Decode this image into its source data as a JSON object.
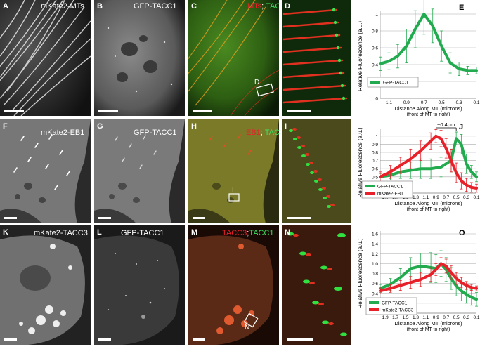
{
  "panels": {
    "A": {
      "letter": "A",
      "title": "mKate2-MTs"
    },
    "B": {
      "letter": "B",
      "title": "GFP-TACC1"
    },
    "C": {
      "letter": "C",
      "title_red": "MTs",
      "sep": "; ",
      "title_green": "TACC1",
      "box": "D"
    },
    "D": {
      "letter": "D"
    },
    "F": {
      "letter": "F",
      "title": "mKate2-EB1"
    },
    "G": {
      "letter": "G",
      "title": "GFP-TACC1"
    },
    "H": {
      "letter": "H",
      "title_red": "EB1",
      "sep": "; ",
      "title_green": "TACC1",
      "box": "I"
    },
    "I": {
      "letter": "I"
    },
    "K": {
      "letter": "K",
      "title": "mKate2-TACC3"
    },
    "L": {
      "letter": "L",
      "title": "GFP-TACC1"
    },
    "M": {
      "letter": "M",
      "title_red": "TACC3",
      "sep": ";",
      "title_green": "TACC1",
      "box": "N"
    },
    "N": {
      "letter": "N"
    }
  },
  "chart_data": [
    {
      "letter": "E",
      "type": "line",
      "ylabel": "Relative Fluorescence (a.u.)",
      "xlabel": "Distance Along MT (microns)",
      "xlabel2": "(front of MT to right)",
      "x_ticks": [
        "1.1",
        "0.9",
        "0.7",
        "0.5",
        "0.3",
        "0.1"
      ],
      "y_ticks": [
        "0",
        "0.2",
        "0.4",
        "0.6",
        "0.8",
        "1"
      ],
      "ylim": [
        0,
        1
      ],
      "xlim": [
        1.2,
        0.1
      ],
      "series": [
        {
          "name": "GFP-TACC1",
          "color": "#22aa4e",
          "x": [
            1.2,
            1.1,
            1.0,
            0.9,
            0.8,
            0.7,
            0.6,
            0.5,
            0.4,
            0.3,
            0.2,
            0.1
          ],
          "values": [
            0.41,
            0.44,
            0.5,
            0.62,
            0.82,
            1.0,
            0.86,
            0.62,
            0.42,
            0.35,
            0.33,
            0.33
          ],
          "err": [
            0.08,
            0.1,
            0.14,
            0.2,
            0.22,
            0.24,
            0.2,
            0.18,
            0.12,
            0.08,
            0.05,
            0.04
          ]
        }
      ]
    },
    {
      "letter": "J",
      "type": "line",
      "ylabel": "Relative Fluorescence (a.u.)",
      "xlabel": "Distance Along MT (microns)",
      "xlabel2": "(front of MT to right)",
      "annotation": "~0.4μm",
      "x_ticks": [
        "1.9",
        "1.7",
        "1.5",
        "1.3",
        "1.1",
        "0.9",
        "0.7",
        "0.5",
        "0.3",
        "0.1"
      ],
      "y_ticks": [
        "0.3",
        "0.4",
        "0.5",
        "0.6",
        "0.7",
        "0.8",
        "0.9",
        "1"
      ],
      "ylim": [
        0.3,
        1.05
      ],
      "xlim": [
        2.0,
        0.1
      ],
      "series": [
        {
          "name": "GFP-TACC1",
          "color": "#22aa4e",
          "x": [
            2.0,
            1.8,
            1.6,
            1.4,
            1.2,
            1.0,
            0.8,
            0.6,
            0.5,
            0.4,
            0.3,
            0.2,
            0.1
          ],
          "values": [
            0.5,
            0.52,
            0.56,
            0.58,
            0.6,
            0.6,
            0.62,
            0.7,
            0.97,
            0.9,
            0.66,
            0.56,
            0.5
          ],
          "err": [
            0.04,
            0.06,
            0.08,
            0.1,
            0.12,
            0.12,
            0.12,
            0.14,
            0.08,
            0.12,
            0.12,
            0.08,
            0.06
          ]
        },
        {
          "name": "mKate2-EB1",
          "color": "#e8202a",
          "x": [
            2.0,
            1.8,
            1.6,
            1.4,
            1.2,
            1.0,
            0.9,
            0.8,
            0.7,
            0.6,
            0.5,
            0.4,
            0.3,
            0.2,
            0.1
          ],
          "values": [
            0.5,
            0.56,
            0.64,
            0.72,
            0.82,
            0.94,
            1.0,
            0.97,
            0.85,
            0.7,
            0.55,
            0.45,
            0.4,
            0.37,
            0.36
          ],
          "err": [
            0.06,
            0.08,
            0.1,
            0.12,
            0.12,
            0.1,
            0.08,
            0.1,
            0.12,
            0.14,
            0.12,
            0.1,
            0.08,
            0.06,
            0.05
          ]
        }
      ]
    },
    {
      "letter": "O",
      "type": "line",
      "ylabel": "Relative Fluorescence (a.u.)",
      "xlabel": "Distance Along MT (microns)",
      "xlabel2": "(front of MT to right)",
      "x_ticks": [
        "1.9",
        "1.7",
        "1.5",
        "1.3",
        "1.1",
        "0.9",
        "0.7",
        "0.5",
        "0.3",
        "0.1"
      ],
      "y_ticks": [
        "0.0",
        "0.2",
        "0.4",
        "0.6",
        "0.8",
        "1.0",
        "1.2",
        "1.4",
        "1.6"
      ],
      "ylim": [
        0,
        1.6
      ],
      "xlim": [
        2.0,
        0.1
      ],
      "series": [
        {
          "name": "GFP-TACC1",
          "color": "#22aa4e",
          "x": [
            2.0,
            1.8,
            1.6,
            1.4,
            1.2,
            1.0,
            0.9,
            0.8,
            0.7,
            0.6,
            0.5,
            0.4,
            0.3,
            0.2,
            0.1
          ],
          "values": [
            0.5,
            0.58,
            0.72,
            0.9,
            0.95,
            0.92,
            0.9,
            1.0,
            0.88,
            0.7,
            0.55,
            0.45,
            0.38,
            0.32,
            0.28
          ],
          "err": [
            0.08,
            0.12,
            0.18,
            0.22,
            0.26,
            0.3,
            0.28,
            0.26,
            0.24,
            0.22,
            0.2,
            0.2,
            0.18,
            0.16,
            0.14
          ]
        },
        {
          "name": "mKate2-TACC3",
          "color": "#e8202a",
          "x": [
            2.0,
            1.8,
            1.6,
            1.4,
            1.2,
            1.0,
            0.9,
            0.8,
            0.7,
            0.6,
            0.5,
            0.4,
            0.3,
            0.2,
            0.1
          ],
          "values": [
            0.45,
            0.5,
            0.56,
            0.62,
            0.68,
            0.78,
            0.88,
            1.0,
            0.95,
            0.82,
            0.7,
            0.62,
            0.56,
            0.52,
            0.5
          ],
          "err": [
            0.06,
            0.08,
            0.1,
            0.12,
            0.14,
            0.14,
            0.12,
            0.12,
            0.14,
            0.14,
            0.12,
            0.1,
            0.08,
            0.06,
            0.05
          ]
        }
      ]
    }
  ]
}
